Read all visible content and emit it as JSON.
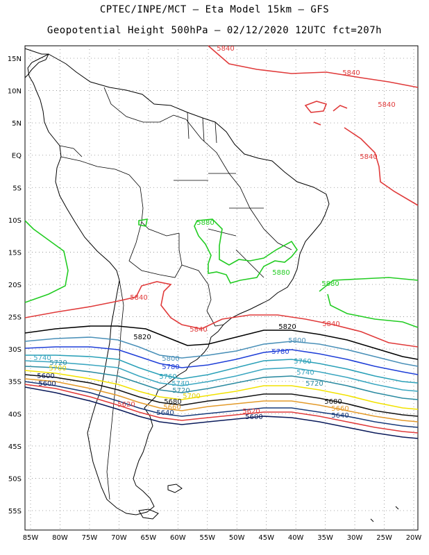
{
  "header": {
    "line1": "CPTEC/INPE/MCT –  Eta Model 15km – GFS",
    "line2": "Geopotential Height 500hPa – 02/12/2020 12UTC fct=207h"
  },
  "map": {
    "region": "South America",
    "lon_range": [
      -85,
      -20
    ],
    "lat_range": [
      -60,
      16
    ],
    "lat_ticks": [
      "15N",
      "10N",
      "5N",
      "EQ",
      "5S",
      "10S",
      "15S",
      "20S",
      "25S",
      "30S",
      "35S",
      "40S",
      "45S",
      "50S",
      "55S"
    ],
    "lon_ticks": [
      "85W",
      "80W",
      "75W",
      "70W",
      "65W",
      "60W",
      "55W",
      "50W",
      "45W",
      "40W",
      "35W",
      "30W",
      "25W",
      "20W"
    ],
    "gridlines": "dotted"
  },
  "contours": [
    {
      "value": "5840",
      "color": "#e03a3a"
    },
    {
      "value": "5880",
      "color": "#22cc22"
    },
    {
      "value": "5820",
      "color": "#000000"
    },
    {
      "value": "5800",
      "color": "#4a90b8"
    },
    {
      "value": "5780",
      "color": "#1f3fd8"
    },
    {
      "value": "5760",
      "color": "#2aa0b8"
    },
    {
      "value": "5740",
      "color": "#3aa6c0"
    },
    {
      "value": "5720",
      "color": "#2a8aa0"
    },
    {
      "value": "5700",
      "color": "#f2e200"
    },
    {
      "value": "5680",
      "color": "#111111"
    },
    {
      "value": "5660",
      "color": "#e39a2a"
    },
    {
      "value": "5640",
      "color": "#173a7a"
    },
    {
      "value": "5620",
      "color": "#e03a3a"
    },
    {
      "value": "5600",
      "color": "#0a1a5a"
    }
  ],
  "labels": [
    {
      "text": "5840",
      "color": "#e03a3a"
    },
    {
      "text": "5840",
      "color": "#e03a3a"
    },
    {
      "text": "5840",
      "color": "#e03a3a"
    },
    {
      "text": "5840",
      "color": "#e03a3a"
    },
    {
      "text": "5840",
      "color": "#e03a3a"
    },
    {
      "text": "5840",
      "color": "#e03a3a"
    },
    {
      "text": "5840",
      "color": "#e03a3a"
    },
    {
      "text": "5880",
      "color": "#22cc22"
    },
    {
      "text": "5880",
      "color": "#22cc22"
    },
    {
      "text": "5880",
      "color": "#22cc22"
    },
    {
      "text": "5820",
      "color": "#000000"
    },
    {
      "text": "5820",
      "color": "#000000"
    },
    {
      "text": "5800",
      "color": "#4a90b8"
    },
    {
      "text": "5800",
      "color": "#4a90b8"
    },
    {
      "text": "5780",
      "color": "#1f3fd8"
    },
    {
      "text": "5780",
      "color": "#1f3fd8"
    },
    {
      "text": "5760",
      "color": "#2aa0b8"
    },
    {
      "text": "5760",
      "color": "#2aa0b8"
    },
    {
      "text": "5740",
      "color": "#3aa6c0"
    },
    {
      "text": "5740",
      "color": "#3aa6c0"
    },
    {
      "text": "5740",
      "color": "#3aa6c0"
    },
    {
      "text": "5720",
      "color": "#2a8aa0"
    },
    {
      "text": "5720",
      "color": "#2a8aa0"
    },
    {
      "text": "5720",
      "color": "#2a8aa0"
    },
    {
      "text": "5700",
      "color": "#e0d000"
    },
    {
      "text": "5700",
      "color": "#e0d000"
    },
    {
      "text": "5680",
      "color": "#111111"
    },
    {
      "text": "5680",
      "color": "#111111"
    },
    {
      "text": "5660",
      "color": "#e39a2a"
    },
    {
      "text": "5660",
      "color": "#e39a2a"
    },
    {
      "text": "5640",
      "color": "#173a7a"
    },
    {
      "text": "5640",
      "color": "#173a7a"
    },
    {
      "text": "5620",
      "color": "#e03a3a"
    },
    {
      "text": "5620",
      "color": "#e03a3a"
    },
    {
      "text": "5600",
      "color": "#0a1a5a"
    },
    {
      "text": "5600",
      "color": "#0a1a5a"
    },
    {
      "text": "5600",
      "color": "#0a1a5a"
    }
  ]
}
